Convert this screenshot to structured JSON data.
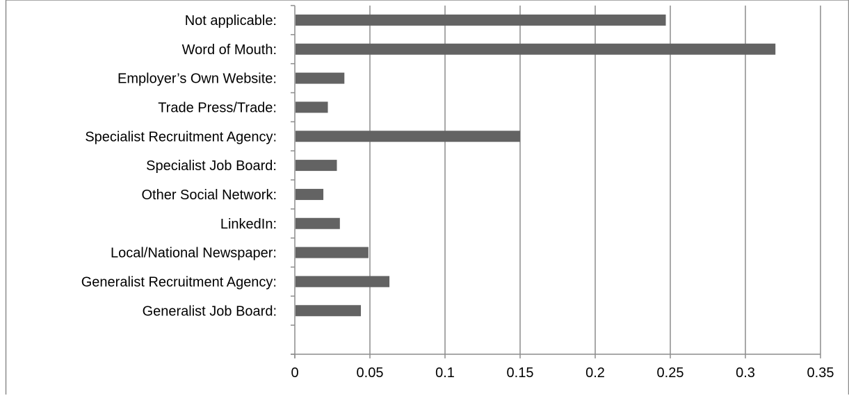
{
  "chart_data": {
    "type": "bar",
    "orientation": "horizontal",
    "title": "",
    "xlabel": "",
    "ylabel": "",
    "categories": [
      "Not applicable:",
      "Word of Mouth:",
      "Employer’s Own Website:",
      "Trade Press/Trade:",
      "Specialist Recruitment Agency:",
      "Specialist Job Board:",
      "Other Social Network:",
      "LinkedIn:",
      "Local/National Newspaper:",
      "Generalist Recruitment Agency:",
      "Generalist Job Board:"
    ],
    "values": [
      0.247,
      0.32,
      0.033,
      0.022,
      0.15,
      0.028,
      0.019,
      0.03,
      0.049,
      0.063,
      0.044
    ],
    "xlim": [
      0,
      0.35
    ],
    "xticks": [
      "0",
      "0.05",
      "0.1",
      "0.15",
      "0.2",
      "0.25",
      "0.3",
      "0.35"
    ],
    "grid": "vertical",
    "legend": "none",
    "colors": {
      "bar": "#636363",
      "grid": "#8c8c8c",
      "axis": "#8c8c8c",
      "border": "#8c8c8c"
    }
  }
}
